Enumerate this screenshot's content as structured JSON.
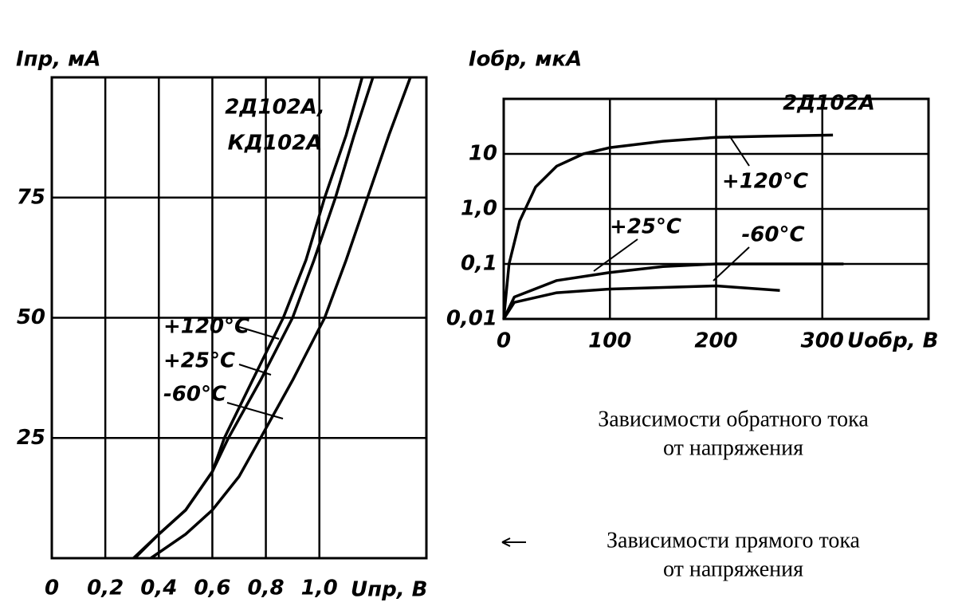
{
  "chart_data": [
    {
      "type": "line",
      "y_label": "Iпр, мА",
      "x_label": "Uпр, В",
      "annotations": [
        "2Д102А,",
        "КД102А",
        "+120°C",
        "+25°C",
        "-60°C"
      ],
      "xlim": [
        0,
        1.4
      ],
      "ylim": [
        0,
        100
      ],
      "xticks": [
        0,
        {
          "value": 0.2,
          "label": "0,2"
        },
        {
          "value": 0.4,
          "label": "0,4"
        },
        {
          "value": 0.6,
          "label": "0,6"
        },
        {
          "value": 0.8,
          "label": "0,8"
        },
        {
          "value": 1.0,
          "label": "1,0"
        }
      ],
      "yticks": [
        25,
        50,
        75
      ],
      "grid": true,
      "series": [
        {
          "name": "+120°C",
          "color": "#000000",
          "x": [
            0.305,
            0.4,
            0.5,
            0.6,
            0.645,
            0.75,
            0.865,
            0.95,
            1.02,
            1.1,
            1.16
          ],
          "values": [
            0,
            5,
            10,
            18,
            25,
            37,
            50,
            62,
            75,
            88,
            100
          ]
        },
        {
          "name": "+25°C",
          "color": "#000000",
          "x": [
            0.31,
            0.4,
            0.5,
            0.6,
            0.66,
            0.78,
            0.9,
            0.98,
            1.06,
            1.13,
            1.2
          ],
          "values": [
            0,
            5,
            10,
            18,
            25,
            37,
            50,
            62,
            75,
            88,
            100
          ]
        },
        {
          "name": "-60°C",
          "color": "#000000",
          "x": [
            0.37,
            0.5,
            0.6,
            0.7,
            0.78,
            0.9,
            1.02,
            1.1,
            1.18,
            1.26,
            1.34
          ],
          "values": [
            0,
            5,
            10,
            17,
            25,
            37,
            50,
            62,
            75,
            88,
            100
          ]
        }
      ]
    },
    {
      "type": "line",
      "y_label": "Iобр, мкА",
      "x_label": "Uобр, В",
      "annotations": [
        "2Д102А",
        "+120°C",
        "+25°C",
        "-60°C"
      ],
      "xlim": [
        0,
        400
      ],
      "ylim": [
        0.01,
        100
      ],
      "log_y": true,
      "xticks": [
        0,
        100,
        200,
        300
      ],
      "yticks": [
        {
          "value": 0.01,
          "label": "0,01"
        },
        {
          "value": 0.1,
          "label": "0,1"
        },
        {
          "value": 1,
          "label": "1,0"
        },
        10
      ],
      "grid": true,
      "series": [
        {
          "name": "+120°C",
          "color": "#000000",
          "x": [
            0,
            5,
            15,
            30,
            50,
            75,
            100,
            150,
            200,
            250,
            310
          ],
          "values": [
            0.01,
            0.1,
            0.6,
            2.5,
            6,
            10,
            13,
            17,
            20,
            21,
            22
          ]
        },
        {
          "name": "+25°C",
          "color": "#000000",
          "x": [
            0,
            10,
            50,
            100,
            150,
            200,
            300,
            320
          ],
          "values": [
            0.01,
            0.025,
            0.05,
            0.07,
            0.09,
            0.1,
            0.1,
            0.1
          ]
        },
        {
          "name": "-60°C",
          "color": "#000000",
          "x": [
            0,
            10,
            50,
            100,
            200,
            260
          ],
          "values": [
            0.01,
            0.02,
            0.03,
            0.035,
            0.04,
            0.033
          ]
        }
      ]
    }
  ],
  "captions": [
    [
      "Зависимости обратного тока",
      "от напряжения"
    ],
    [
      "Зависимости прямого тока",
      "от напряжения"
    ]
  ]
}
